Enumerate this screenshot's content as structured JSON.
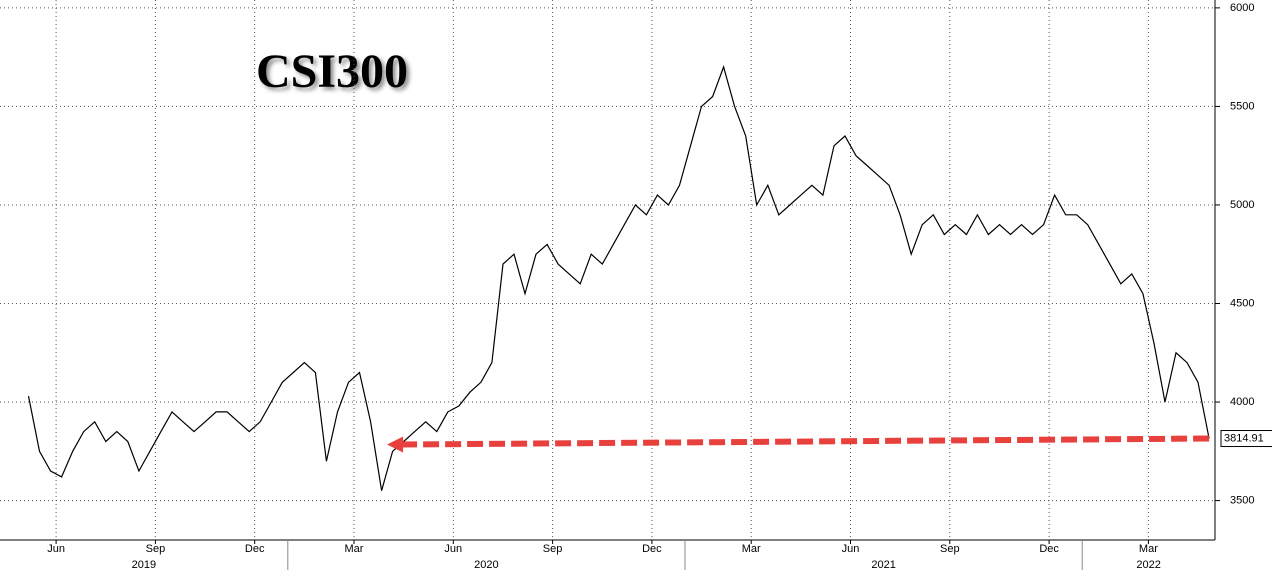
{
  "chart_data": {
    "type": "line",
    "title": "CSI300",
    "x": [
      "2019-05",
      "2019-05",
      "2019-05",
      "2019-06",
      "2019-06",
      "2019-06",
      "2019-07",
      "2019-07",
      "2019-07",
      "2019-08",
      "2019-08",
      "2019-08",
      "2019-09",
      "2019-09",
      "2019-09",
      "2019-10",
      "2019-10",
      "2019-10",
      "2019-11",
      "2019-11",
      "2019-11",
      "2019-12",
      "2019-12",
      "2019-12",
      "2020-01",
      "2020-01",
      "2020-01",
      "2020-02",
      "2020-02",
      "2020-02",
      "2020-03",
      "2020-03",
      "2020-03",
      "2020-04",
      "2020-04",
      "2020-04",
      "2020-05",
      "2020-05",
      "2020-05",
      "2020-06",
      "2020-06",
      "2020-06",
      "2020-07",
      "2020-07",
      "2020-07",
      "2020-08",
      "2020-08",
      "2020-08",
      "2020-09",
      "2020-09",
      "2020-09",
      "2020-10",
      "2020-10",
      "2020-10",
      "2020-11",
      "2020-11",
      "2020-11",
      "2020-12",
      "2020-12",
      "2020-12",
      "2021-01",
      "2021-01",
      "2021-01",
      "2021-02",
      "2021-02",
      "2021-02",
      "2021-03",
      "2021-03",
      "2021-03",
      "2021-04",
      "2021-04",
      "2021-04",
      "2021-05",
      "2021-05",
      "2021-05",
      "2021-06",
      "2021-06",
      "2021-06",
      "2021-07",
      "2021-07",
      "2021-07",
      "2021-08",
      "2021-08",
      "2021-08",
      "2021-09",
      "2021-09",
      "2021-09",
      "2021-10",
      "2021-10",
      "2021-10",
      "2021-11",
      "2021-11",
      "2021-11",
      "2021-12",
      "2021-12",
      "2021-12",
      "2022-01",
      "2022-01",
      "2022-01",
      "2022-02",
      "2022-02",
      "2022-02",
      "2022-03",
      "2022-03",
      "2022-03",
      "2022-04",
      "2022-04",
      "2022-04"
    ],
    "series": [
      {
        "name": "CSI300",
        "color": "#000000",
        "values": [
          4030,
          3750,
          3650,
          3620,
          3750,
          3850,
          3900,
          3800,
          3850,
          3800,
          3650,
          3750,
          3850,
          3950,
          3900,
          3850,
          3900,
          3950,
          3950,
          3900,
          3850,
          3900,
          4000,
          4100,
          4150,
          4200,
          4150,
          3700,
          3950,
          4100,
          4150,
          3900,
          3550,
          3750,
          3800,
          3850,
          3900,
          3850,
          3950,
          3980,
          4050,
          4100,
          4200,
          4700,
          4750,
          4550,
          4750,
          4800,
          4700,
          4650,
          4600,
          4750,
          4700,
          4800,
          4900,
          5000,
          4950,
          5050,
          5000,
          5100,
          5300,
          5500,
          5550,
          5700,
          5500,
          5350,
          5000,
          5100,
          4950,
          5000,
          5050,
          5100,
          5050,
          5300,
          5350,
          5250,
          5200,
          5150,
          5100,
          4950,
          4750,
          4900,
          4950,
          4850,
          4900,
          4850,
          4950,
          4850,
          4900,
          4850,
          4900,
          4850,
          4900,
          5050,
          4950,
          4950,
          4900,
          4800,
          4700,
          4600,
          4650,
          4550,
          4300,
          4000,
          4250,
          4200,
          4100,
          3814.91
        ]
      }
    ],
    "last_value_label": "3814.91",
    "ylim": [
      3300,
      6040
    ],
    "yticks": [
      3500,
      4000,
      4500,
      5000,
      5500,
      6000
    ],
    "xlim": [
      "2019-05",
      "2022-04"
    ],
    "xticks": [
      {
        "value": "2019-06",
        "label": "Jun"
      },
      {
        "value": "2019-09",
        "label": "Sep"
      },
      {
        "value": "2019-12",
        "label": "Dec"
      },
      {
        "value": "2020-03",
        "label": "Mar"
      },
      {
        "value": "2020-06",
        "label": "Jun"
      },
      {
        "value": "2020-09",
        "label": "Sep"
      },
      {
        "value": "2020-12",
        "label": "Dec"
      },
      {
        "value": "2021-03",
        "label": "Mar"
      },
      {
        "value": "2021-06",
        "label": "Jun"
      },
      {
        "value": "2021-09",
        "label": "Sep"
      },
      {
        "value": "2021-12",
        "label": "Dec"
      },
      {
        "value": "2022-03",
        "label": "Mar"
      }
    ],
    "years": [
      "2019",
      "2020",
      "2021",
      "2022"
    ],
    "grid": true
  }
}
